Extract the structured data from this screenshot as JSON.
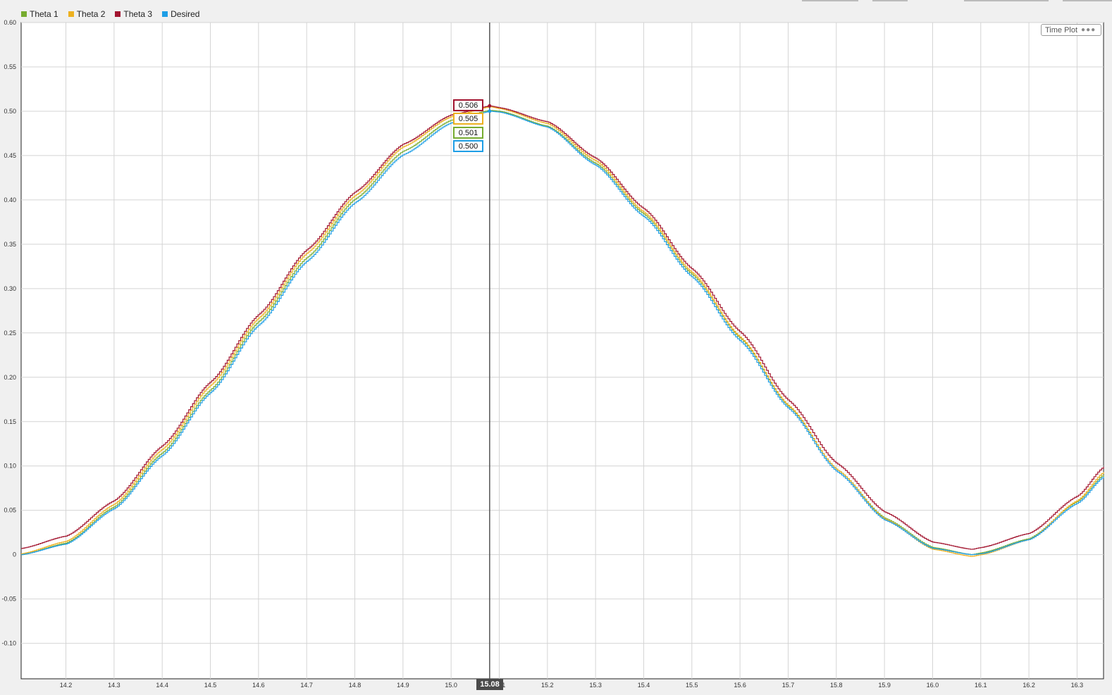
{
  "legend": [
    {
      "name": "Theta 1",
      "color": "#77ac30"
    },
    {
      "name": "Theta 2",
      "color": "#edb120"
    },
    {
      "name": "Theta 3",
      "color": "#a2142f"
    },
    {
      "name": "Desired",
      "color": "#1e9ee6"
    }
  ],
  "time_plot_label": "Time Plot",
  "cursor": {
    "time_label": "15.08",
    "time": 15.08
  },
  "readouts": [
    {
      "value": "0.506",
      "color": "#a2142f"
    },
    {
      "value": "0.505",
      "color": "#edb120"
    },
    {
      "value": "0.501",
      "color": "#77ac30"
    },
    {
      "value": "0.500",
      "color": "#1e9ee6"
    }
  ],
  "chart_data": {
    "type": "line",
    "title": "",
    "xlabel": "",
    "ylabel": "",
    "xlim": [
      14.107,
      16.355
    ],
    "ylim": [
      -0.14,
      0.6
    ],
    "grid": true,
    "legend_position": "top-left",
    "x_ticks": [
      14.2,
      14.3,
      14.4,
      14.5,
      14.6,
      14.7,
      14.8,
      14.9,
      15.0,
      15.1,
      15.2,
      15.3,
      15.4,
      15.5,
      15.6,
      15.7,
      15.8,
      15.9,
      16.0,
      16.1,
      16.2,
      16.3
    ],
    "x_tick_labels": [
      "14.2",
      "14.3",
      "14.4",
      "14.5",
      "14.6",
      "14.7",
      "14.8",
      "14.9",
      "15.0",
      "15.1",
      "15.2",
      "15.3",
      "15.4",
      "15.5",
      "15.6",
      "15.7",
      "15.8",
      "15.9",
      "16.0",
      "16.1",
      "16.2",
      "16.3"
    ],
    "y_ticks": [
      0.6,
      0.55,
      0.5,
      0.45,
      0.4,
      0.35,
      0.3,
      0.25,
      0.2,
      0.15,
      0.1,
      0.05,
      0,
      -0.05,
      -0.1
    ],
    "y_tick_labels": [
      "0.60",
      "0.55",
      "0.50",
      "0.45",
      "0.40",
      "0.35",
      "0.30",
      "0.25",
      "0.20",
      "0.15",
      "0.10",
      "0.05",
      "0",
      "-0.05",
      "-0.10"
    ],
    "series": [
      {
        "name": "Theta 1",
        "color": "#77ac30",
        "x": [
          14.107,
          14.2,
          14.3,
          14.4,
          14.5,
          14.6,
          14.7,
          14.8,
          14.9,
          15.0,
          15.08,
          15.1,
          15.2,
          15.3,
          15.4,
          15.5,
          15.6,
          15.7,
          15.8,
          15.9,
          16.0,
          16.08,
          16.1,
          16.2,
          16.3,
          16.355
        ],
        "y": [
          0.0,
          0.013,
          0.054,
          0.115,
          0.186,
          0.263,
          0.335,
          0.401,
          0.455,
          0.49,
          0.501,
          0.5,
          0.483,
          0.441,
          0.384,
          0.316,
          0.244,
          0.167,
          0.096,
          0.041,
          0.008,
          0.0,
          0.002,
          0.018,
          0.06,
          0.09
        ]
      },
      {
        "name": "Theta 2",
        "color": "#edb120",
        "x": [
          14.107,
          14.2,
          14.3,
          14.4,
          14.5,
          14.6,
          14.7,
          14.8,
          14.9,
          15.0,
          15.08,
          15.1,
          15.2,
          15.3,
          15.4,
          15.5,
          15.6,
          15.7,
          15.8,
          15.9,
          16.0,
          16.08,
          16.1,
          16.2,
          16.3,
          16.355
        ],
        "y": [
          0.001,
          0.015,
          0.057,
          0.119,
          0.191,
          0.267,
          0.34,
          0.405,
          0.46,
          0.494,
          0.505,
          0.503,
          0.486,
          0.444,
          0.386,
          0.318,
          0.245,
          0.168,
          0.096,
          0.04,
          0.006,
          -0.002,
          0.0,
          0.017,
          0.061,
          0.093
        ]
      },
      {
        "name": "Theta 3",
        "color": "#a2142f",
        "x": [
          14.107,
          14.2,
          14.3,
          14.4,
          14.5,
          14.6,
          14.7,
          14.8,
          14.9,
          15.0,
          15.08,
          15.1,
          15.2,
          15.3,
          15.4,
          15.5,
          15.6,
          15.7,
          15.8,
          15.9,
          16.0,
          16.08,
          16.1,
          16.2,
          16.3,
          16.355
        ],
        "y": [
          0.007,
          0.021,
          0.061,
          0.123,
          0.195,
          0.271,
          0.344,
          0.409,
          0.463,
          0.496,
          0.506,
          0.504,
          0.488,
          0.447,
          0.39,
          0.322,
          0.251,
          0.174,
          0.103,
          0.048,
          0.014,
          0.006,
          0.008,
          0.024,
          0.066,
          0.099
        ]
      },
      {
        "name": "Desired",
        "color": "#1e9ee6",
        "x": [
          14.107,
          14.2,
          14.3,
          14.4,
          14.5,
          14.6,
          14.7,
          14.8,
          14.9,
          15.0,
          15.08,
          15.1,
          15.2,
          15.3,
          15.4,
          15.5,
          15.6,
          15.7,
          15.8,
          15.9,
          16.0,
          16.08,
          16.1,
          16.2,
          16.3,
          16.355
        ],
        "y": [
          0.0,
          0.012,
          0.052,
          0.112,
          0.183,
          0.259,
          0.331,
          0.397,
          0.451,
          0.487,
          0.5,
          0.499,
          0.482,
          0.439,
          0.381,
          0.313,
          0.241,
          0.165,
          0.094,
          0.039,
          0.007,
          0.0,
          0.001,
          0.017,
          0.058,
          0.088
        ]
      }
    ]
  }
}
